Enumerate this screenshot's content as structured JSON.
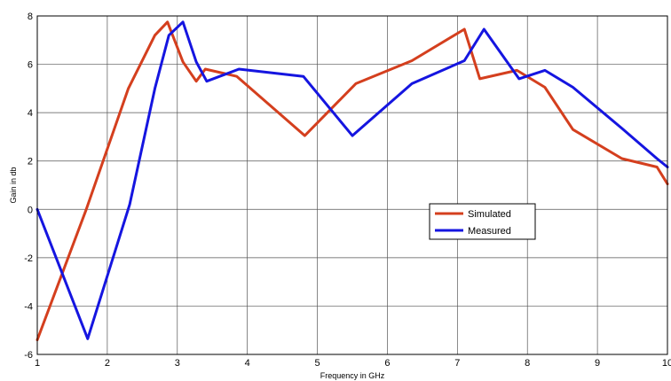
{
  "chart_data": {
    "type": "line",
    "title": "",
    "xlabel": "Frequency in GHz",
    "ylabel": "Gain in db",
    "xlim": [
      1,
      10
    ],
    "ylim": [
      -6,
      8
    ],
    "xticks": [
      1,
      2,
      3,
      4,
      5,
      6,
      7,
      8,
      9,
      10
    ],
    "yticks": [
      -6,
      -4,
      -2,
      0,
      2,
      4,
      6,
      8
    ],
    "grid": true,
    "legend_position": "center-right",
    "series": [
      {
        "name": "Simulated",
        "color": "#d43f1e",
        "x": [
          1.0,
          1.7,
          2.3,
          2.68,
          2.86,
          3.08,
          3.27,
          3.4,
          3.85,
          4.82,
          5.55,
          6.35,
          7.1,
          7.32,
          7.85,
          8.25,
          8.65,
          9.35,
          9.85,
          10.0
        ],
        "y": [
          -5.4,
          0.0,
          5.0,
          7.2,
          7.75,
          6.1,
          5.3,
          5.8,
          5.5,
          3.05,
          5.2,
          6.15,
          7.45,
          5.4,
          5.75,
          5.05,
          3.3,
          2.1,
          1.75,
          1.05
        ]
      },
      {
        "name": "Measured",
        "color": "#1515e0",
        "x": [
          1.0,
          1.72,
          2.32,
          2.68,
          2.88,
          3.08,
          3.27,
          3.42,
          3.88,
          4.8,
          5.5,
          6.35,
          7.1,
          7.38,
          7.88,
          8.25,
          8.65,
          9.35,
          9.85,
          10.0
        ],
        "y": [
          0.0,
          -5.35,
          0.2,
          5.0,
          7.2,
          7.75,
          6.1,
          5.3,
          5.8,
          5.5,
          3.05,
          5.2,
          6.15,
          7.45,
          5.4,
          5.75,
          5.05,
          3.35,
          2.1,
          1.75
        ]
      }
    ]
  }
}
